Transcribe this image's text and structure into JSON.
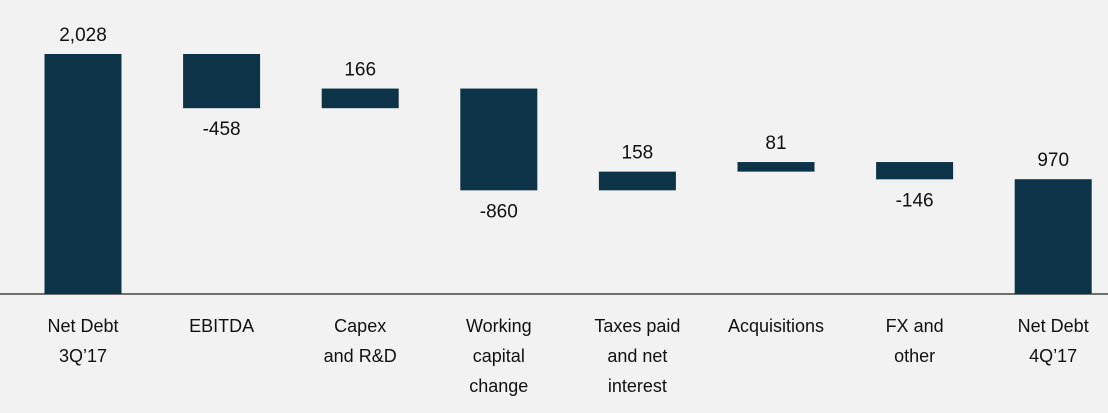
{
  "chart_data": {
    "type": "waterfall",
    "categories": [
      "Net Debt\n3Q’17",
      "EBITDA",
      "Capex\nand R&D",
      "Working\ncapital\nchange",
      "Taxes paid\nand net\ninterest",
      "Acquisitions",
      "FX and\nother",
      "Net Debt\n4Q’17"
    ],
    "values": [
      2028,
      -458,
      166,
      -860,
      158,
      81,
      -146,
      970
    ],
    "value_labels": [
      "2,028",
      "-458",
      "166",
      "-860",
      "158",
      "81",
      "-146",
      "970"
    ],
    "color": "#0d3349"
  }
}
